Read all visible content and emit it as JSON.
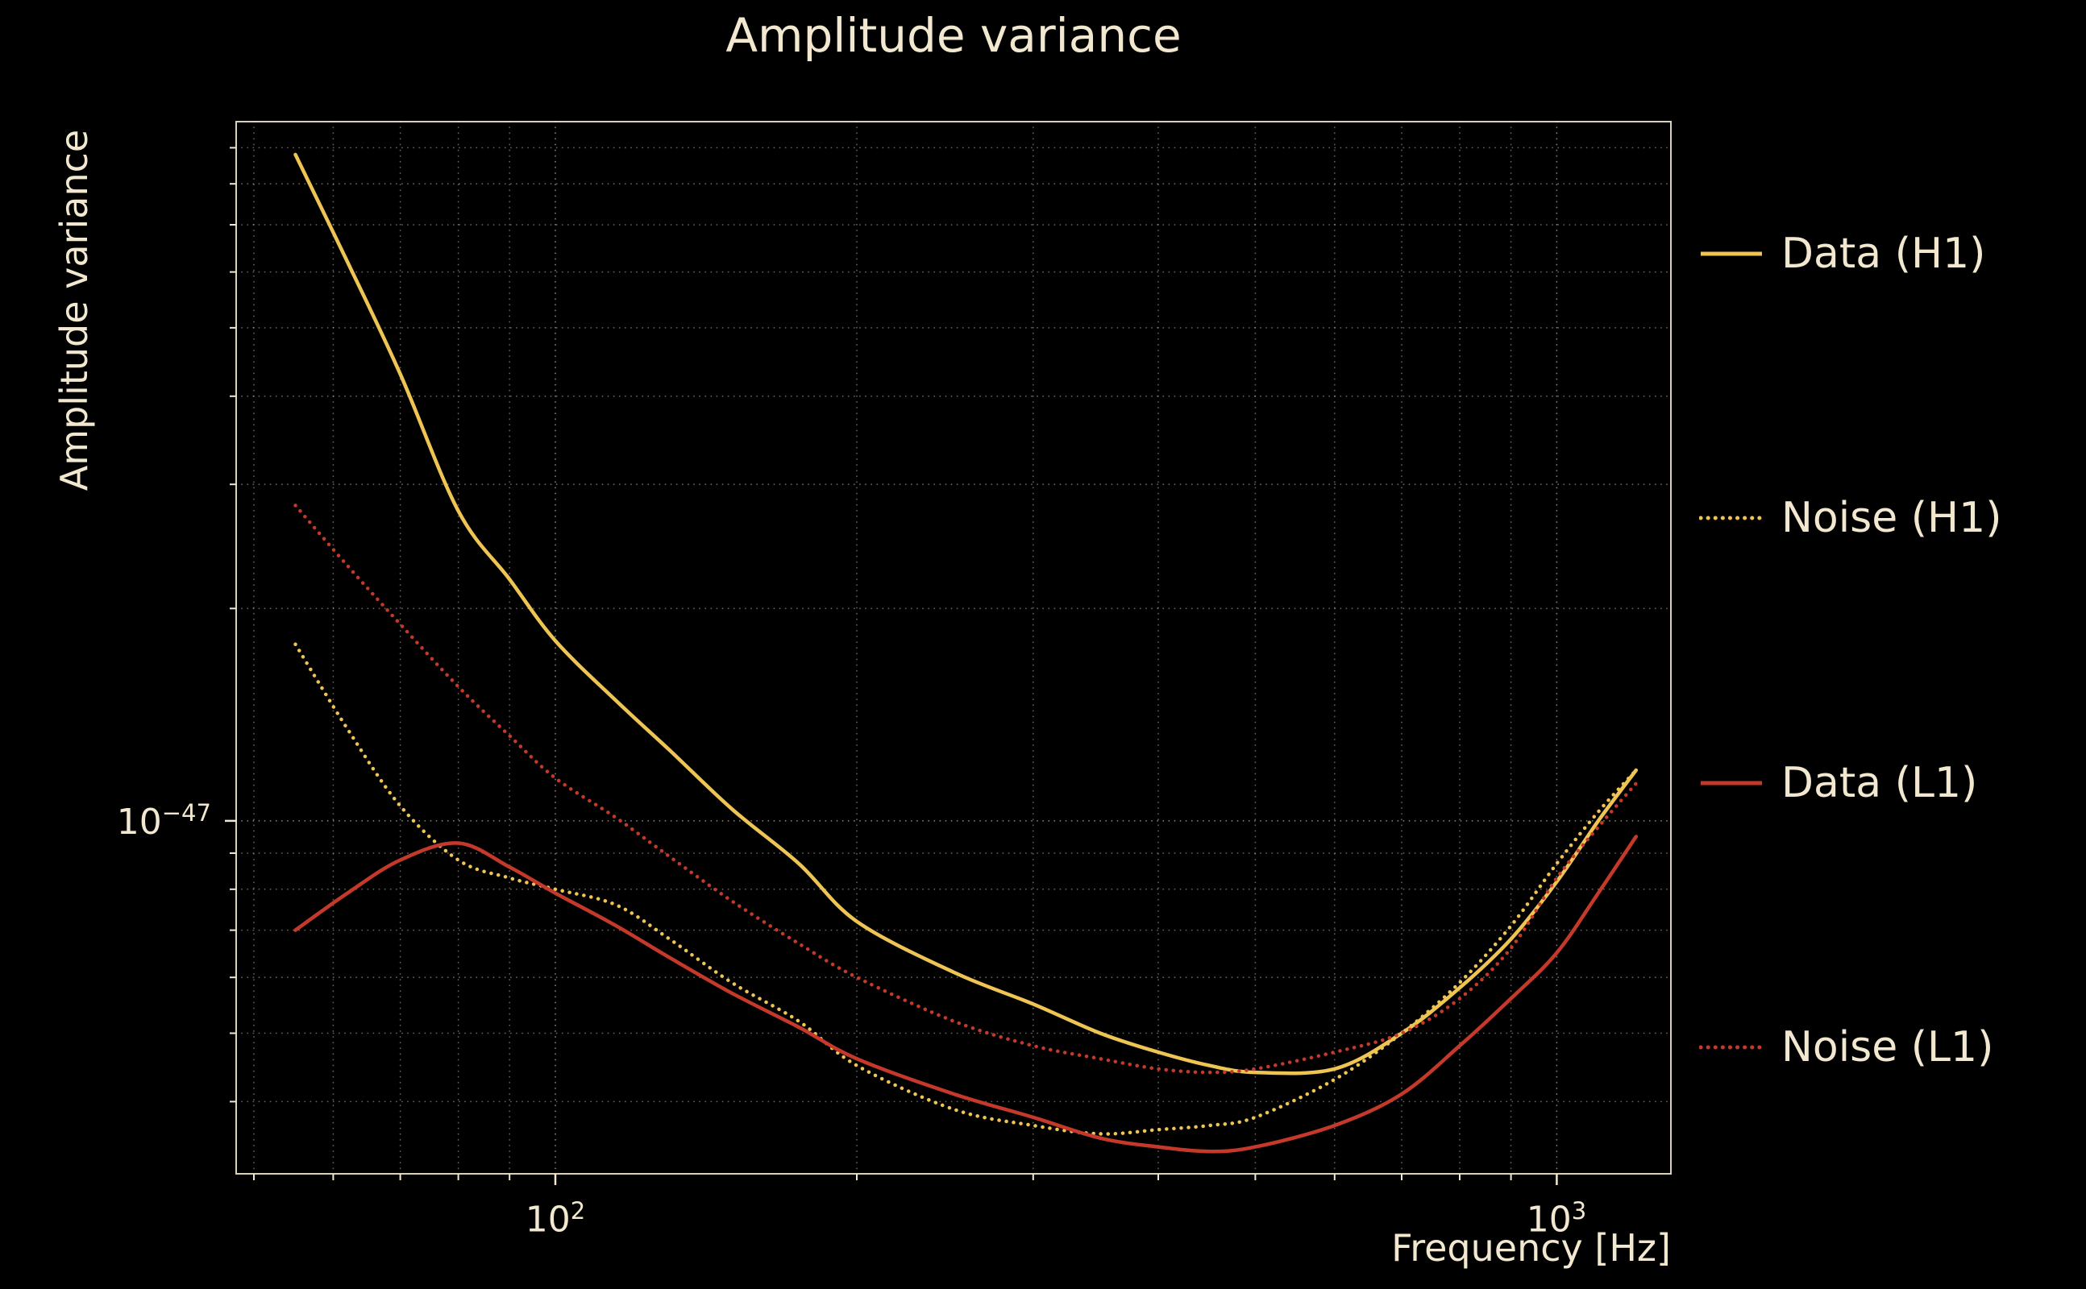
{
  "page": {
    "background": "#000000",
    "text_color": "#f2e8cf"
  },
  "title": "Amplitude variance",
  "axes": {
    "x": {
      "label": "Frequency [Hz]",
      "ticks": [
        {
          "base": "10",
          "exp": "2"
        },
        {
          "base": "10",
          "exp": "3"
        }
      ]
    },
    "y": {
      "label": "Amplitude variance",
      "ticks": [
        {
          "base": "10",
          "exp": "−47"
        }
      ]
    }
  },
  "chart_data": {
    "type": "line",
    "title": "Amplitude variance",
    "xlabel": "Frequency [Hz]",
    "ylabel": "Amplitude variance",
    "x_scale": "log",
    "y_scale": "log",
    "xlim": [
      48,
      1300
    ],
    "ylim": [
      3.16e-48,
      9.8e-47
    ],
    "grid": {
      "style": "dotted",
      "x_major": [
        100,
        1000
      ],
      "x_minor": [
        50,
        60,
        70,
        80,
        90,
        200,
        300,
        400,
        500,
        600,
        700,
        800,
        900
      ],
      "y_major": [
        1e-47
      ],
      "y_minor": [
        9e-47,
        8e-47,
        7e-47,
        6e-47,
        5e-47,
        4e-47,
        3e-47,
        2e-47,
        9e-48,
        8e-48,
        7e-48,
        6e-48,
        5e-48,
        4e-48
      ]
    },
    "x": [
      55,
      62,
      70,
      80,
      90,
      100,
      115,
      130,
      150,
      175,
      200,
      250,
      300,
      350,
      400,
      450,
      500,
      600,
      700,
      800,
      900,
      1000,
      1100,
      1200
    ],
    "series": [
      {
        "name": "Data (H1)",
        "color": "#eec453",
        "style": "solid",
        "values": [
          8.8e-47,
          6.2e-47,
          4.3e-47,
          2.75e-47,
          2.2e-47,
          1.8e-47,
          1.48e-47,
          1.26e-47,
          1.04e-47,
          8.7e-48,
          7.2e-48,
          6.1e-48,
          5.5e-48,
          5e-48,
          4.7e-48,
          4.5e-48,
          4.4e-48,
          4.45e-48,
          5e-48,
          5.8e-48,
          6.8e-48,
          8.2e-48,
          1e-47,
          1.18e-47
        ]
      },
      {
        "name": "Noise (H1)",
        "color": "#eec453",
        "style": "dotted",
        "values": [
          1.78e-47,
          1.35e-47,
          1.05e-47,
          8.8e-48,
          8.3e-48,
          8e-48,
          7.6e-48,
          6.8e-48,
          5.9e-48,
          5.2e-48,
          4.5e-48,
          3.9e-48,
          3.7e-48,
          3.6e-48,
          3.65e-48,
          3.7e-48,
          3.8e-48,
          4.3e-48,
          5e-48,
          5.9e-48,
          7.1e-48,
          8.7e-48,
          1.03e-47,
          1.18e-47
        ]
      },
      {
        "name": "Data (L1)",
        "color": "#c5392b",
        "style": "solid",
        "values": [
          7e-48,
          7.9e-48,
          8.8e-48,
          9.3e-48,
          8.6e-48,
          7.9e-48,
          7.1e-48,
          6.4e-48,
          5.7e-48,
          5.1e-48,
          4.6e-48,
          4.1e-48,
          3.8e-48,
          3.55e-48,
          3.45e-48,
          3.4e-48,
          3.45e-48,
          3.7e-48,
          4.1e-48,
          4.8e-48,
          5.6e-48,
          6.5e-48,
          7.9e-48,
          9.5e-48
        ]
      },
      {
        "name": "Noise (L1)",
        "color": "#c5392b",
        "style": "dotted",
        "values": [
          2.8e-47,
          2.3e-47,
          1.9e-47,
          1.55e-47,
          1.32e-47,
          1.15e-47,
          1.01e-47,
          8.9e-48,
          7.7e-48,
          6.7e-48,
          6e-48,
          5.2e-48,
          4.8e-48,
          4.6e-48,
          4.45e-48,
          4.4e-48,
          4.45e-48,
          4.7e-48,
          5e-48,
          5.6e-48,
          6.6e-48,
          8.3e-48,
          9.8e-48,
          1.13e-47
        ]
      }
    ],
    "legend_position": "right-outside"
  }
}
